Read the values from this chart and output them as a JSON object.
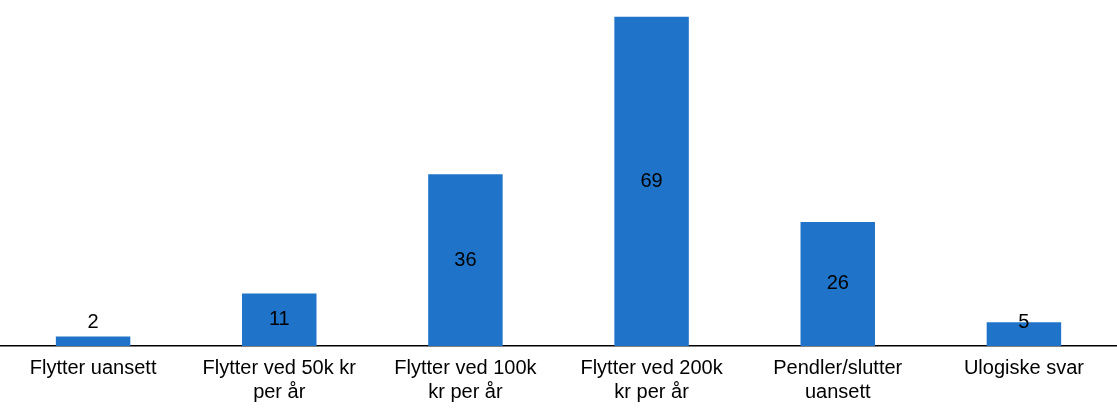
{
  "chart_data": {
    "type": "bar",
    "categories": [
      "Flytter uansett",
      "Flytter ved 50k kr per år",
      "Flytter ved 100k kr per år",
      "Flytter ved 200k kr per år",
      "Pendler/slutter uansett",
      "Ulogiske svar"
    ],
    "values": [
      2,
      11,
      36,
      69,
      26,
      5
    ],
    "color": "#1f74c9",
    "data_labels": true,
    "grid": false,
    "legend": false
  }
}
